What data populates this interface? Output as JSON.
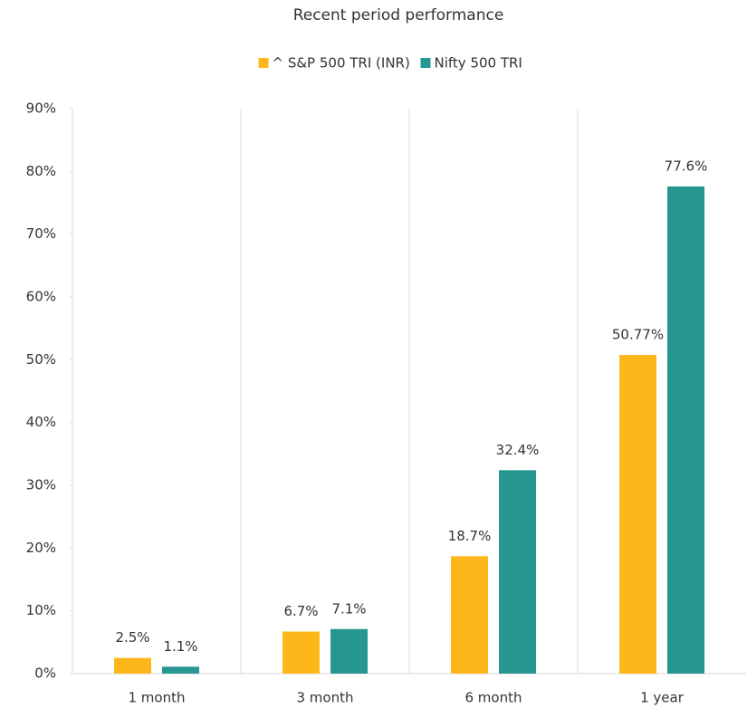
{
  "chart_data": {
    "type": "bar",
    "title": "Recent period performance",
    "categories": [
      "1 month",
      "3 month",
      "6 month",
      "1 year"
    ],
    "series": [
      {
        "name": "^ S&P 500 TRI (INR)",
        "color": "#fdb71a",
        "values": [
          2.5,
          6.7,
          18.7,
          50.77
        ],
        "value_labels": [
          "2.5%",
          "6.7%",
          "18.7%",
          "50.77%"
        ]
      },
      {
        "name": "Nifty 500 TRI",
        "color": "#259690",
        "values": [
          1.1,
          7.1,
          32.4,
          77.6
        ],
        "value_labels": [
          "1.1%",
          "7.1%",
          "32.4%",
          "77.6%"
        ]
      }
    ],
    "ylim": [
      0,
      90
    ],
    "yticks": [
      {
        "value": 0,
        "label": "0%"
      },
      {
        "value": 10,
        "label": "10%"
      },
      {
        "value": 20,
        "label": "20%"
      },
      {
        "value": 30,
        "label": "30%"
      },
      {
        "value": 40,
        "label": "40%"
      },
      {
        "value": 50,
        "label": "50%"
      },
      {
        "value": 60,
        "label": "60%"
      },
      {
        "value": 70,
        "label": "70%"
      },
      {
        "value": 80,
        "label": "80%"
      },
      {
        "value": 90,
        "label": "90%"
      }
    ],
    "legend": "top"
  }
}
